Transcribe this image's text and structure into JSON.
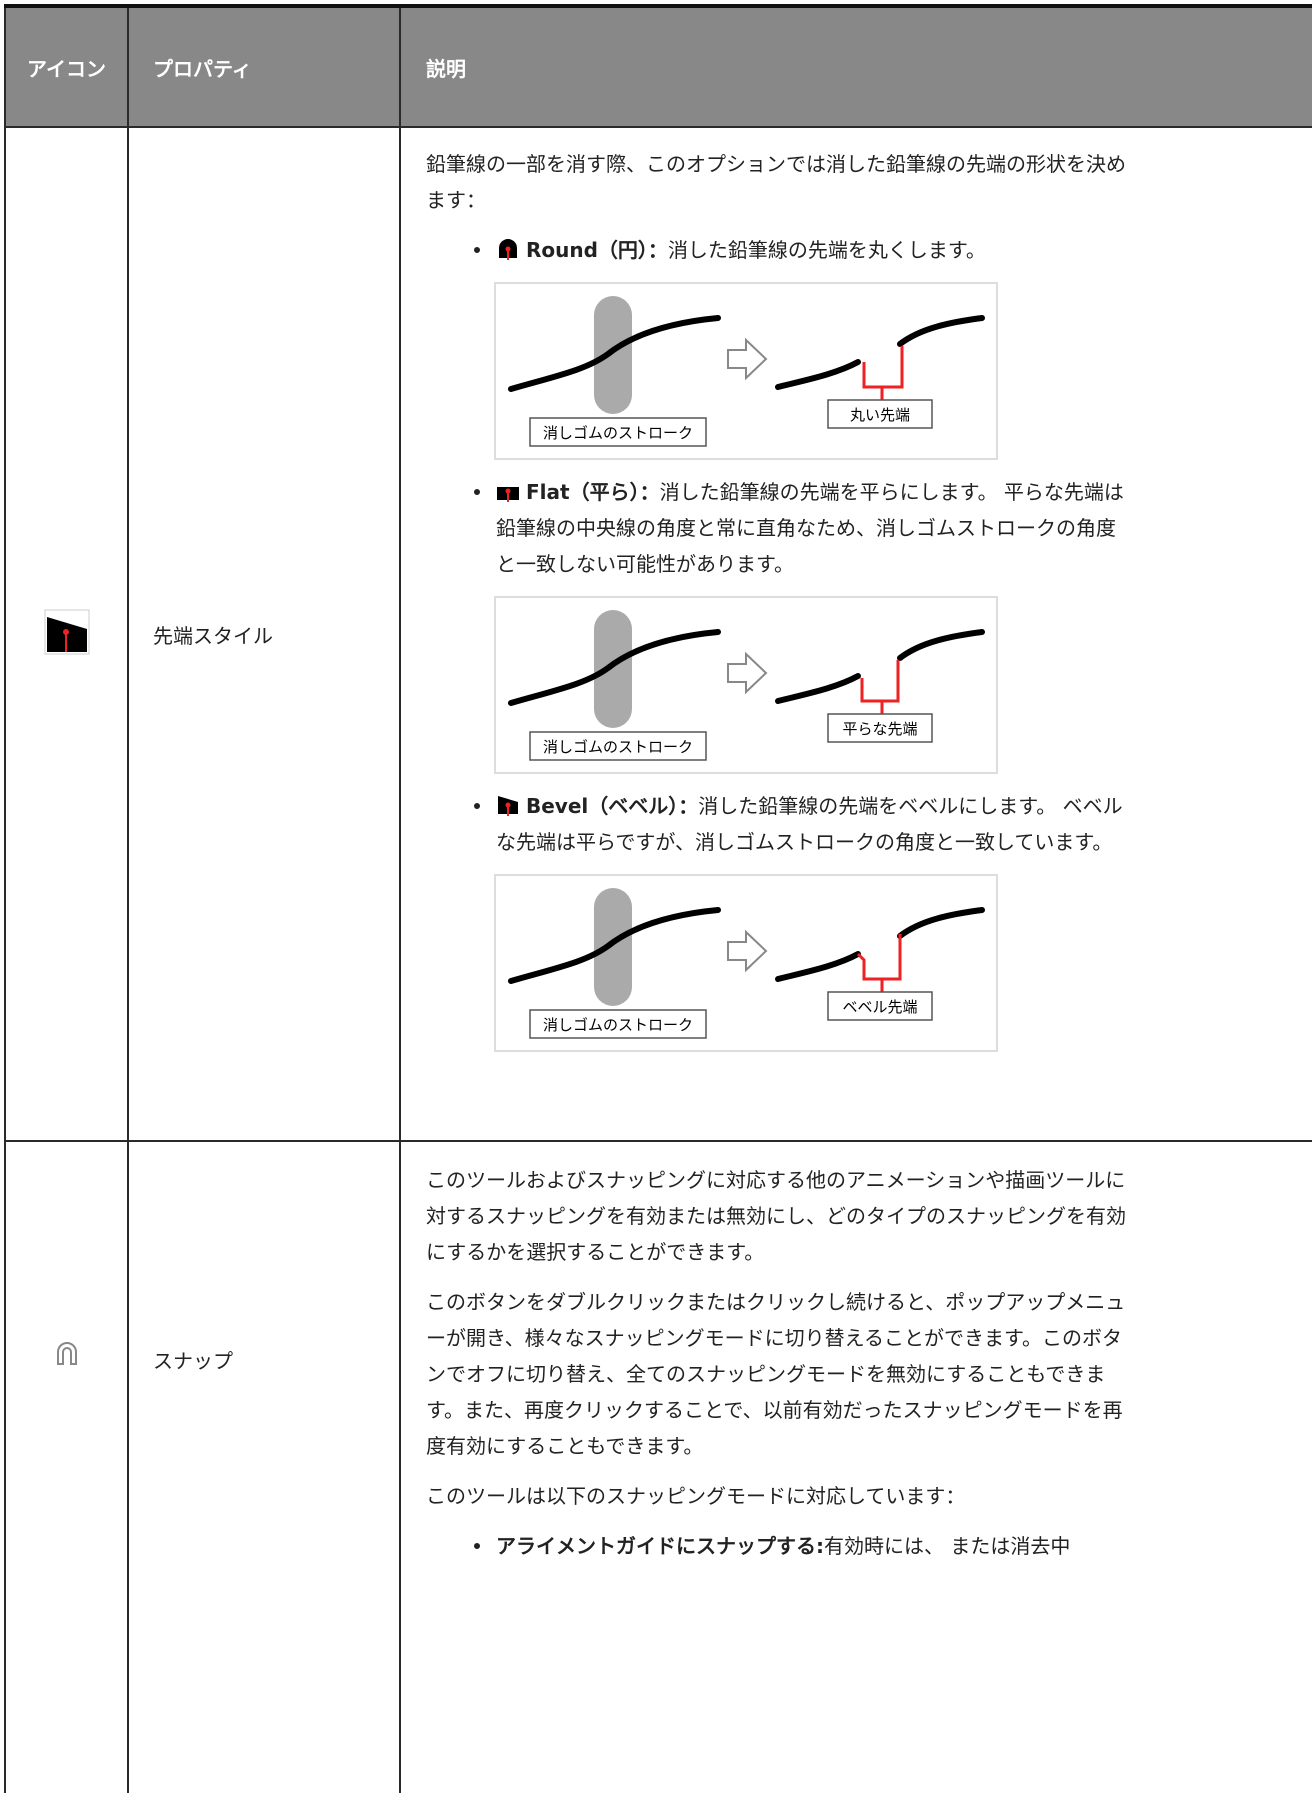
{
  "table": {
    "header": [
      "アイコン",
      "プロパティ",
      "説明"
    ],
    "rows": [
      {
        "property": "先端スタイル",
        "intro": "鉛筆線の一部を消す際、このオプションでは消した鉛筆線の先端の形状を決めます：",
        "items": [
          {
            "term": "Round（円）：",
            "text": "消した鉛筆線の先端を丸くします。",
            "diagram": {
              "left_label": "消しゴムのストローク",
              "right_label": "丸い先端"
            }
          },
          {
            "term": "Flat（平ら）：",
            "text": "消した鉛筆線の先端を平らにします。 平らな先端は鉛筆線の中央線の角度と常に直角なため、消しゴムストロークの角度と一致しない可能性があります。",
            "diagram": {
              "left_label": "消しゴムのストローク",
              "right_label": "平らな先端"
            }
          },
          {
            "term": "Bevel（ベベル）：",
            "text": "消した鉛筆線の先端をベベルにします。 ベベルな先端は平らですが、消しゴムストロークの角度と一致しています。",
            "diagram": {
              "left_label": "消しゴムのストローク",
              "right_label": "ベベル先端"
            }
          }
        ]
      },
      {
        "property": "スナップ",
        "paragraphs": [
          "このツールおよびスナッピングに対応する他のアニメーションや描画ツールに対するスナッピングを有効または無効にし、どのタイプのスナッピングを有効にするかを選択することができます。",
          "このボタンをダブルクリックまたはクリックし続けると、ポップアップメニューが開き、様々なスナッピングモードに切り替えることができます。このボタンでオフに切り替え、全てのスナッピングモードを無効にすることもできます。また、再度クリックすることで、以前有効だったスナッピングモードを再度有効にすることもできます。",
          "このツールは以下のスナッピングモードに対応しています："
        ],
        "items": [
          {
            "term": "アライメントガイドにスナップする:",
            "text": "有効時には、 または消去中"
          }
        ]
      }
    ]
  }
}
